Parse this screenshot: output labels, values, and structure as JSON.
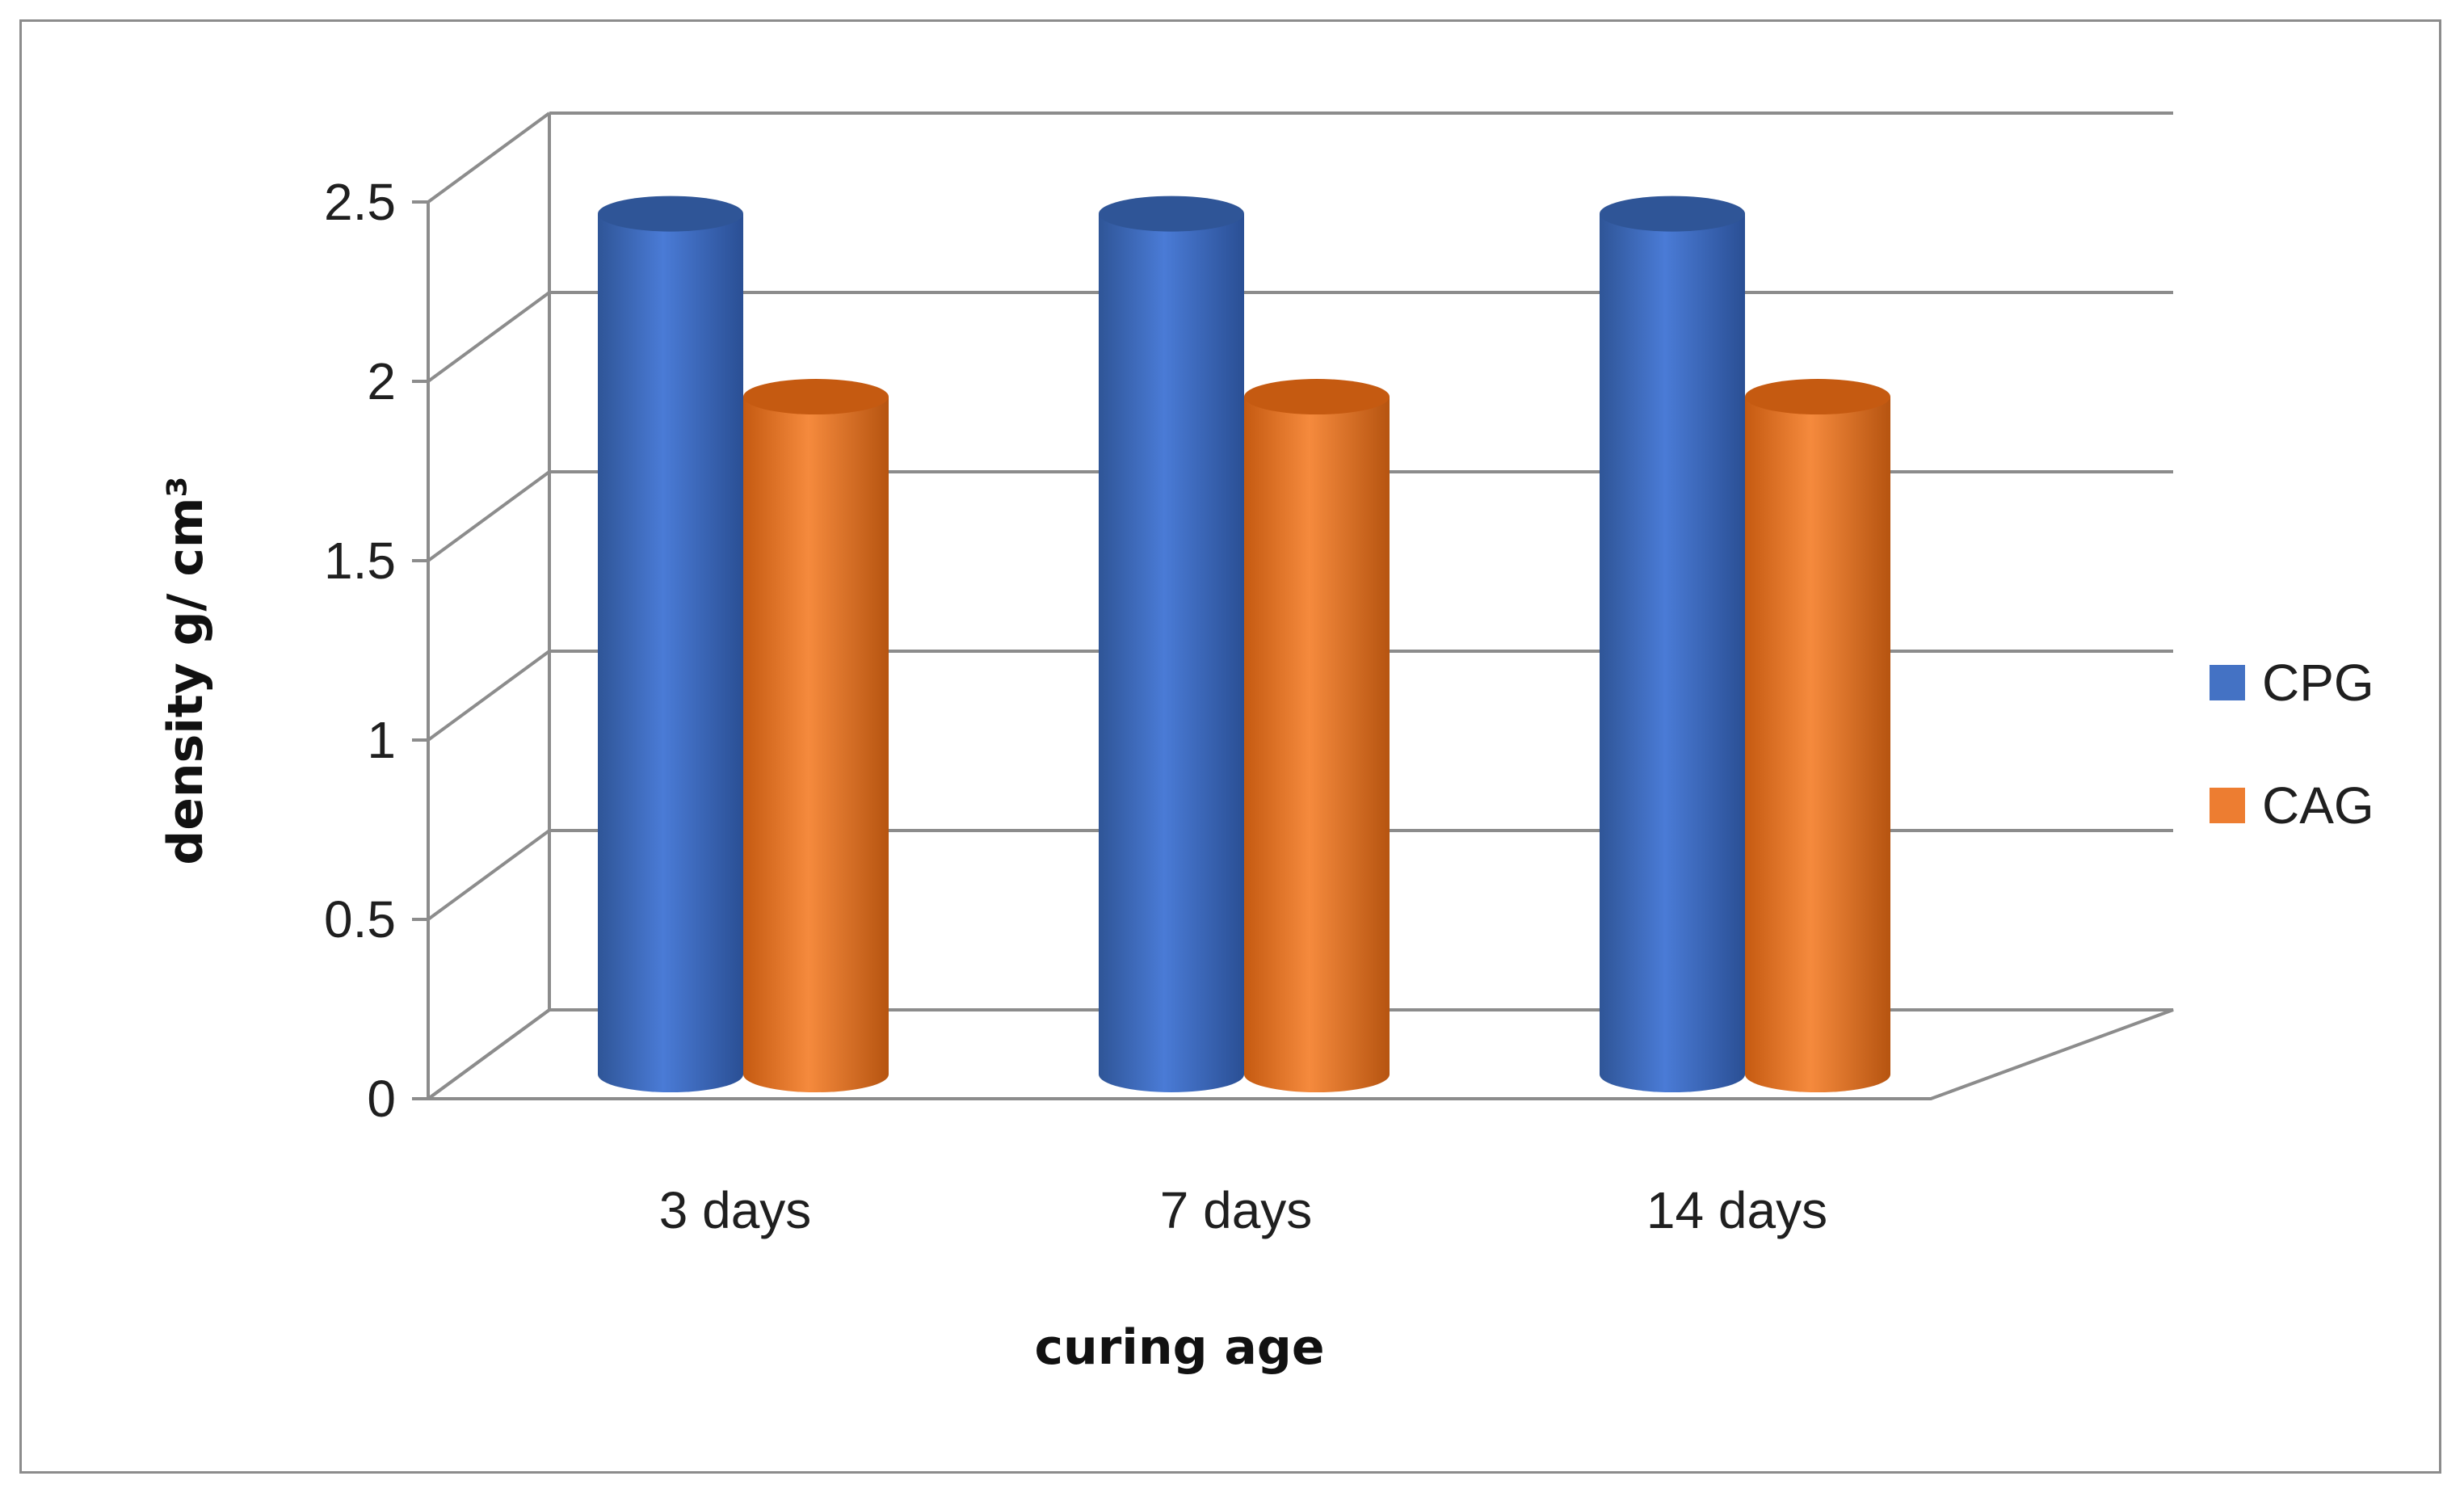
{
  "chart_data": {
    "type": "bar",
    "style": "3d-cylinder",
    "title": "",
    "xlabel": "curing age",
    "ylabel": "density g/ cm³",
    "categories": [
      "3 days",
      "7 days",
      "14 days"
    ],
    "series": [
      {
        "name": "CPG",
        "color": "#4472c4",
        "values": [
          2.43,
          2.43,
          2.43
        ]
      },
      {
        "name": "CAG",
        "color": "#ed7d31",
        "values": [
          1.92,
          1.92,
          1.92
        ]
      }
    ],
    "ylim": [
      0,
      2.5
    ],
    "yticks": [
      "0",
      "0.5",
      "1",
      "1.5",
      "2",
      "2.5"
    ],
    "grid": true,
    "legend_position": "right"
  }
}
